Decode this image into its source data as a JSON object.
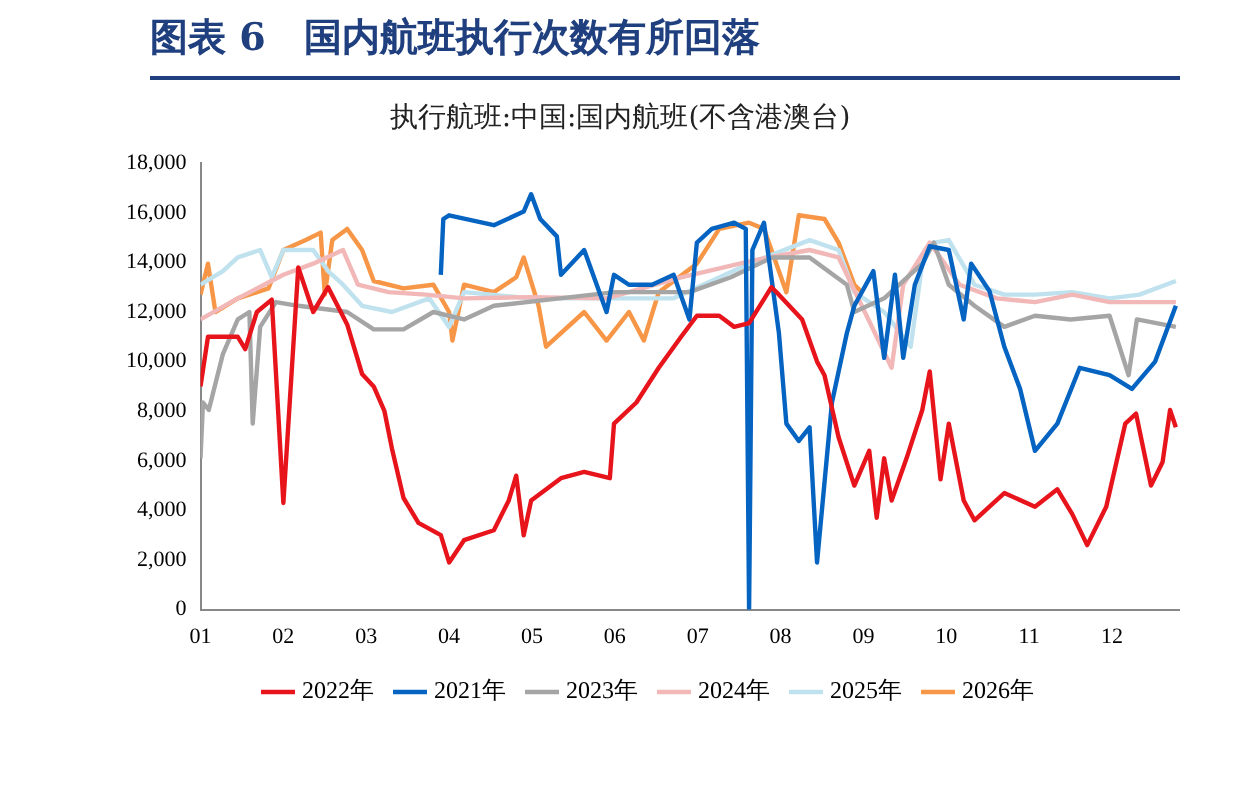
{
  "chart_data": {
    "type": "line",
    "title": "图表 6　国内航班执行次数有所回落",
    "subtitle": "执行航班:中国:国内航班(不含港澳台)",
    "xlim": [
      1,
      12.82
    ],
    "xticks": [
      {
        "value": 1,
        "label": "01"
      },
      {
        "value": 2,
        "label": "02"
      },
      {
        "value": 3,
        "label": "03"
      },
      {
        "value": 4,
        "label": "04"
      },
      {
        "value": 5,
        "label": "05"
      },
      {
        "value": 6,
        "label": "06"
      },
      {
        "value": 7,
        "label": "07"
      },
      {
        "value": 8,
        "label": "08"
      },
      {
        "value": 9,
        "label": "09"
      },
      {
        "value": 10,
        "label": "10"
      },
      {
        "value": 11,
        "label": "11"
      },
      {
        "value": 12,
        "label": "12"
      }
    ],
    "ylim": [
      0,
      18000
    ],
    "yticks": [
      {
        "value": 0,
        "label": "0"
      },
      {
        "value": 2000,
        "label": "2,000"
      },
      {
        "value": 4000,
        "label": "4,000"
      },
      {
        "value": 6000,
        "label": "6,000"
      },
      {
        "value": 8000,
        "label": "8,000"
      },
      {
        "value": 10000,
        "label": "10,000"
      },
      {
        "value": 12000,
        "label": "12,000"
      },
      {
        "value": 14000,
        "label": "14,000"
      },
      {
        "value": 16000,
        "label": "16,000"
      },
      {
        "value": 18000,
        "label": "18,000"
      }
    ],
    "grid": false,
    "legend": "bottom",
    "marker": "none",
    "line_style": "solid",
    "series": [
      {
        "name": "2022年",
        "color": "#e8141c",
        "x": [
          1.0,
          1.09,
          1.45,
          1.54,
          1.68,
          1.86,
          2.0,
          2.18,
          2.36,
          2.54,
          2.77,
          2.95,
          3.09,
          3.22,
          3.31,
          3.45,
          3.63,
          3.9,
          4.0,
          4.18,
          4.54,
          4.72,
          4.81,
          4.9,
          4.99,
          5.35,
          5.63,
          5.94,
          5.99,
          6.26,
          6.53,
          6.8,
          6.99,
          7.26,
          7.44,
          7.62,
          7.89,
          7.98,
          8.26,
          8.44,
          8.53,
          8.7,
          8.89,
          9.07,
          9.16,
          9.25,
          9.34,
          9.52,
          9.71,
          9.8,
          9.93,
          10.03,
          10.21,
          10.34,
          10.7,
          11.07,
          11.34,
          11.52,
          11.7,
          11.93,
          12.16,
          12.29,
          12.47,
          12.61,
          12.7,
          12.77
        ],
        "values": [
          9000,
          11000,
          11000,
          10500,
          12000,
          12500,
          4300,
          13800,
          12000,
          13000,
          11500,
          9500,
          9000,
          8000,
          6500,
          4500,
          3500,
          3000,
          1900,
          2800,
          3200,
          4400,
          5400,
          3000,
          4400,
          5300,
          5550,
          5300,
          7500,
          8350,
          9750,
          11000,
          11850,
          11850,
          11400,
          11550,
          13000,
          12700,
          11700,
          10000,
          9450,
          6950,
          5000,
          6400,
          3700,
          6100,
          4400,
          6100,
          8050,
          9600,
          5250,
          7500,
          4400,
          3600,
          4700,
          4150,
          4850,
          3850,
          2600,
          4150,
          7500,
          7900,
          5000,
          5950,
          8050,
          7350
        ]
      },
      {
        "name": "2021年",
        "color": "#0563c1",
        "x": [
          3.9,
          3.93,
          4.0,
          4.54,
          4.9,
          4.99,
          5.1,
          5.3,
          5.35,
          5.63,
          5.9,
          5.99,
          6.17,
          6.45,
          6.71,
          6.9,
          6.99,
          7.17,
          7.44,
          7.58,
          7.62,
          7.66,
          7.8,
          7.98,
          8.07,
          8.22,
          8.35,
          8.44,
          8.62,
          8.8,
          8.89,
          9.12,
          9.25,
          9.38,
          9.48,
          9.62,
          9.8,
          10.03,
          10.21,
          10.3,
          10.52,
          10.7,
          10.89,
          11.07,
          11.34,
          11.61,
          11.97,
          12.24,
          12.52,
          12.77
        ],
        "values": [
          13500,
          15750,
          15900,
          15500,
          16050,
          16750,
          15750,
          15050,
          13500,
          14500,
          12000,
          13500,
          13100,
          13100,
          13500,
          11700,
          14800,
          15350,
          15600,
          15350,
          0,
          14500,
          15600,
          11150,
          7500,
          6800,
          7350,
          1900,
          8350,
          11150,
          12250,
          13650,
          10150,
          13500,
          10150,
          13100,
          14650,
          14500,
          11700,
          13950,
          12850,
          10600,
          8900,
          6400,
          7500,
          9750,
          9450,
          8900,
          10000,
          12250
        ]
      },
      {
        "name": "2023年",
        "color": "#a5a5a5",
        "x": [
          1.0,
          1.03,
          1.1,
          1.27,
          1.45,
          1.59,
          1.63,
          1.72,
          1.91,
          2.18,
          2.54,
          2.77,
          3.09,
          3.45,
          3.81,
          4.18,
          4.54,
          5.2,
          6.0,
          6.9,
          7.4,
          7.9,
          8.35,
          8.8,
          8.89,
          9.25,
          9.71,
          9.85,
          10.03,
          10.34,
          10.7,
          11.07,
          11.5,
          11.97,
          12.2,
          12.3,
          12.77
        ],
        "values": [
          6100,
          8350,
          8050,
          10300,
          11700,
          12000,
          7500,
          11400,
          12400,
          12250,
          12100,
          12000,
          11300,
          11300,
          12000,
          11700,
          12250,
          12500,
          12800,
          12800,
          13400,
          14200,
          14200,
          13100,
          12000,
          12550,
          13950,
          14800,
          13100,
          12250,
          11400,
          11850,
          11700,
          11850,
          9450,
          11700,
          11400
        ]
      },
      {
        "name": "2024年",
        "color": "#f2b8b8",
        "x": [
          1.0,
          1.45,
          2.0,
          2.36,
          2.72,
          2.9,
          3.27,
          3.72,
          4.18,
          5.0,
          5.9,
          6.8,
          7.7,
          8.35,
          8.7,
          8.98,
          9.34,
          9.48,
          9.8,
          10.16,
          10.61,
          11.07,
          11.52,
          11.97,
          12.77
        ],
        "values": [
          11700,
          12550,
          13500,
          13950,
          14500,
          13100,
          12800,
          12700,
          12550,
          12600,
          12550,
          13400,
          14100,
          14500,
          14200,
          12250,
          9750,
          13100,
          14800,
          13100,
          12550,
          12400,
          12700,
          12400,
          12400
        ]
      },
      {
        "name": "2025年",
        "color": "#bfe2ee",
        "x": [
          1.0,
          1.27,
          1.45,
          1.72,
          1.86,
          2.0,
          2.36,
          2.54,
          2.72,
          2.95,
          3.31,
          3.76,
          4.0,
          4.18,
          5.0,
          5.9,
          6.71,
          7.62,
          8.35,
          8.7,
          8.89,
          9.25,
          9.57,
          9.71,
          9.85,
          10.03,
          10.34,
          10.7,
          11.07,
          11.52,
          11.97,
          12.33,
          12.77
        ],
        "values": [
          13100,
          13650,
          14200,
          14500,
          13400,
          14500,
          14500,
          13650,
          13100,
          12250,
          12000,
          12550,
          11400,
          12800,
          12550,
          12550,
          12550,
          13950,
          14900,
          14500,
          12800,
          12000,
          10600,
          13950,
          14800,
          14900,
          13100,
          12700,
          12700,
          12800,
          12550,
          12700,
          13250
        ]
      },
      {
        "name": "2026年",
        "color": "#f79646",
        "x": [
          1.0,
          1.09,
          1.18,
          1.45,
          1.82,
          2.0,
          2.27,
          2.45,
          2.5,
          2.59,
          2.77,
          2.95,
          3.09,
          3.45,
          3.81,
          4.0,
          4.04,
          4.18,
          4.54,
          4.81,
          4.9,
          5.08,
          5.17,
          5.63,
          5.9,
          6.17,
          6.35,
          6.53,
          6.99,
          7.26,
          7.62,
          7.8,
          8.07,
          8.22,
          8.53,
          8.7,
          8.89,
          8.98
        ],
        "values": [
          12700,
          13950,
          12000,
          12550,
          12950,
          14500,
          14900,
          15200,
          12700,
          14900,
          15350,
          14500,
          13250,
          12950,
          13100,
          12000,
          10850,
          13100,
          12800,
          13400,
          14200,
          12250,
          10600,
          12000,
          10850,
          12000,
          10850,
          12800,
          13950,
          15350,
          15600,
          15350,
          12800,
          15900,
          15750,
          14800,
          13100,
          12800
        ]
      }
    ]
  }
}
